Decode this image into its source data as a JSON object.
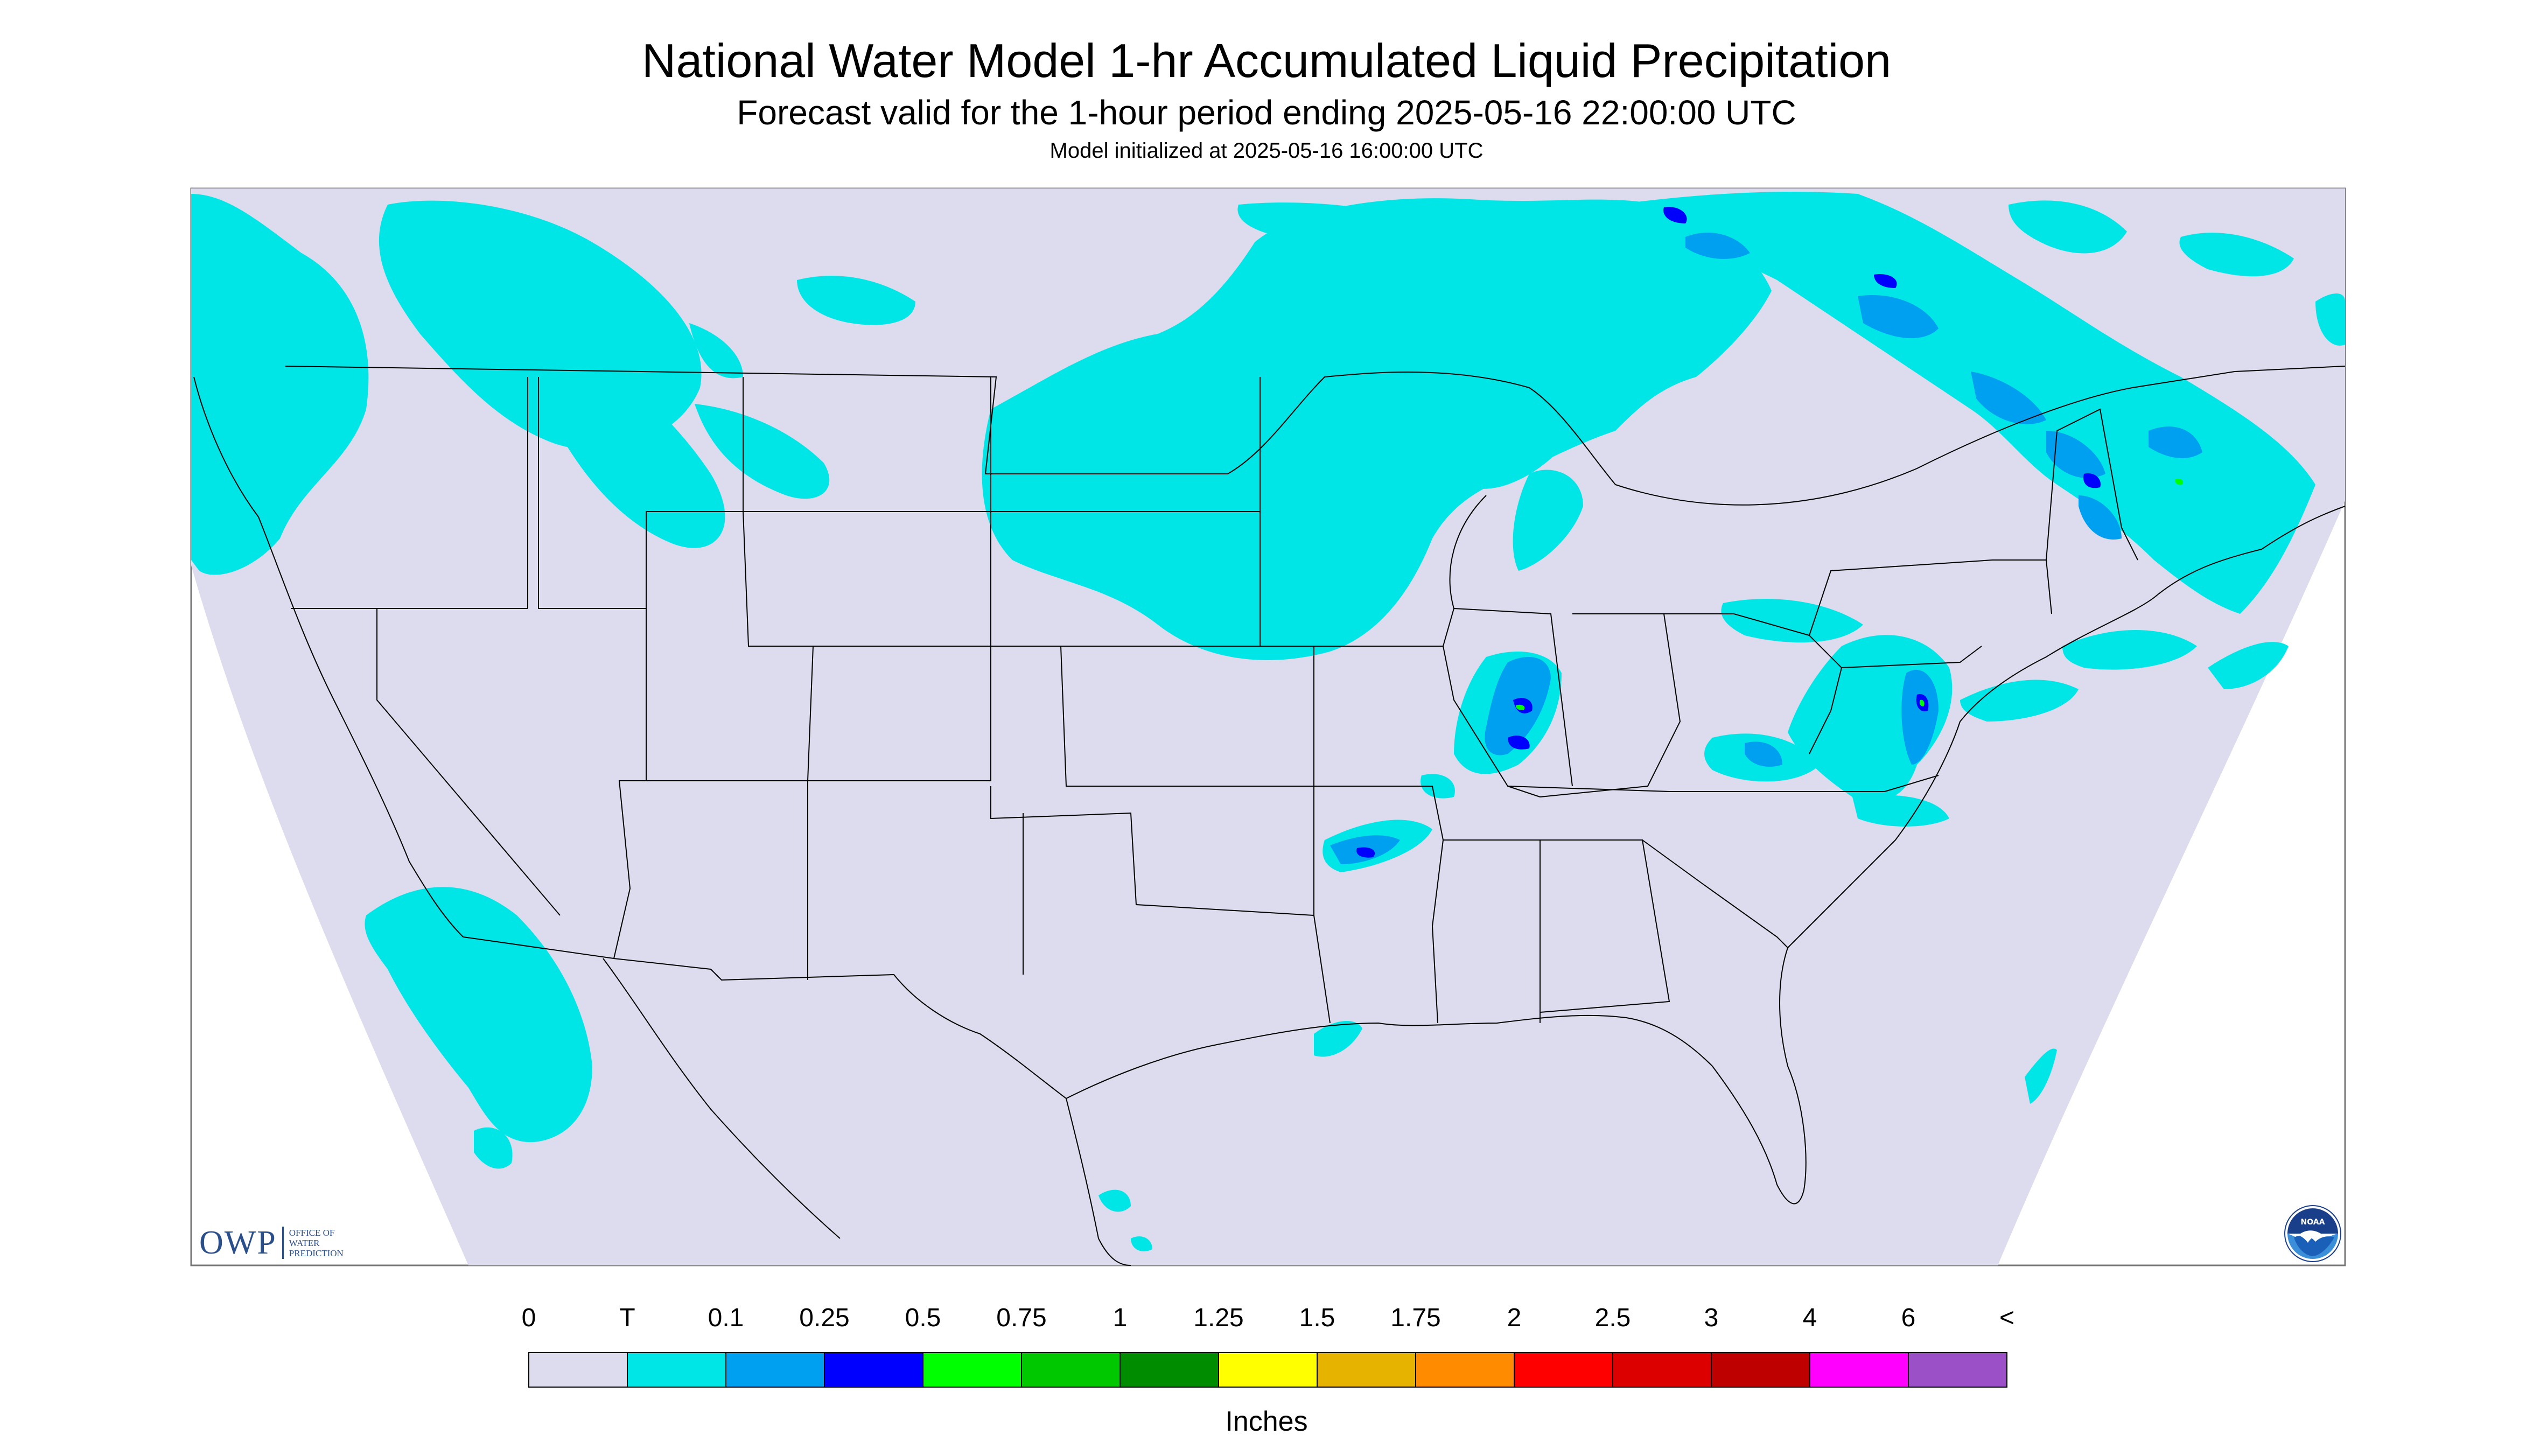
{
  "header": {
    "title": "National Water Model 1-hr Accumulated Liquid Precipitation",
    "subtitle": "Forecast valid for the 1-hour period ending 2025-05-16 22:00:00 UTC",
    "init": "Model initialized at 2025-05-16 16:00:00 UTC"
  },
  "logos": {
    "owp_main": "OWP",
    "owp_line1": "OFFICE OF",
    "owp_line2": "WATER",
    "owp_line3": "PREDICTION",
    "noaa": "NOAA"
  },
  "legend": {
    "tick_labels": [
      "0",
      "T",
      "0.1",
      "0.25",
      "0.5",
      "0.75",
      "1",
      "1.25",
      "1.5",
      "1.75",
      "2",
      "2.5",
      "3",
      "4",
      "6",
      "<"
    ],
    "colors": [
      "#dcdcee",
      "#00e6e6",
      "#00a0f0",
      "#0000ff",
      "#00ff00",
      "#00c800",
      "#008c00",
      "#ffff00",
      "#e6b400",
      "#ff8c00",
      "#ff0000",
      "#dc0000",
      "#be0000",
      "#ff00ff",
      "#9b50c8"
    ],
    "units": "Inches"
  },
  "colors": {
    "no_data_bg": "#ffffff",
    "domain_fill": "#dcdcee",
    "trace": "#00e6e6",
    "light": "#00a0f0",
    "moderate": "#0000ff",
    "heavy": "#00ff00",
    "boundaries": "#000000"
  }
}
